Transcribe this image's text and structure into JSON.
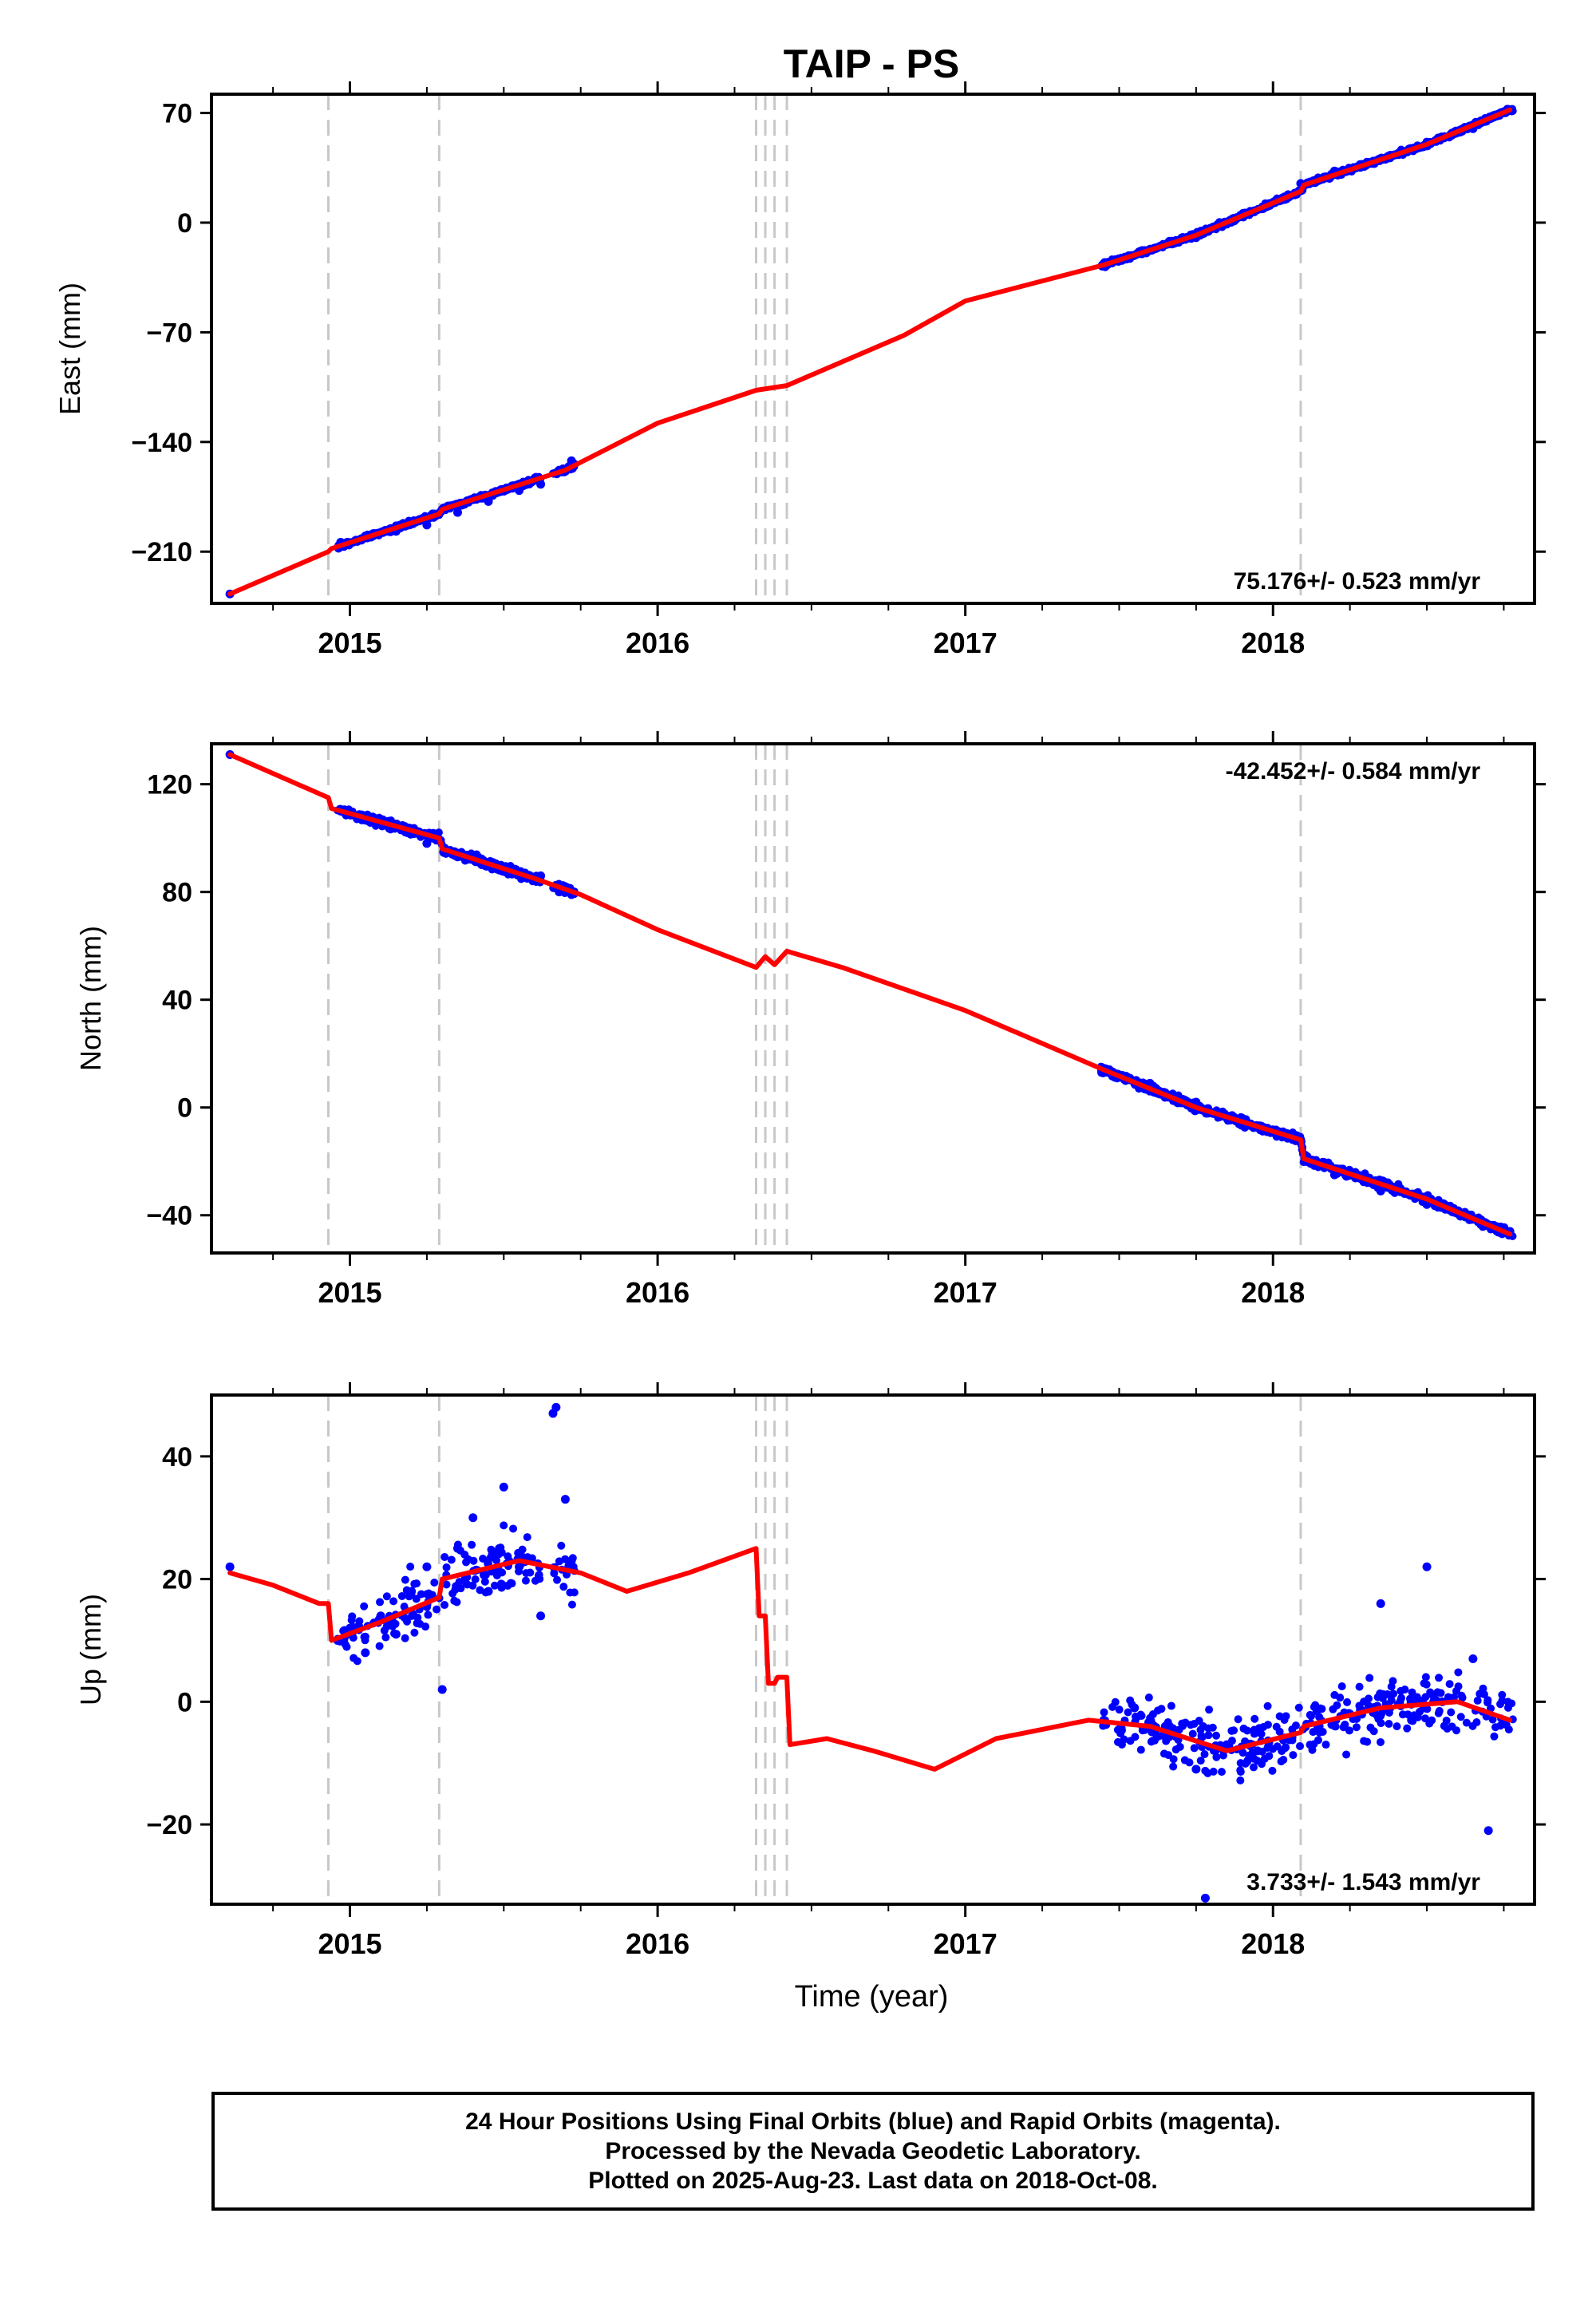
{
  "title": "TAIP - PS",
  "xlabel": "Time (year)",
  "x_ticks": [
    "2015",
    "2016",
    "2017",
    "2018"
  ],
  "colors": {
    "data": "#0000ff",
    "model": "#ff0000",
    "steps": "#c8c8c8",
    "frame": "#000000"
  },
  "footer": {
    "line1": "24 Hour Positions Using Final Orbits (blue) and Rapid Orbits (magenta).",
    "line2": "Processed by the Nevada Geodetic Laboratory.",
    "line3": "Plotted on 2025-Aug-23. Last data on 2018-Oct-08."
  },
  "chart_data": [
    {
      "type": "scatter",
      "ylabel": "East (mm)",
      "xlim": [
        2014.55,
        2018.85
      ],
      "ylim": [
        -243,
        82
      ],
      "y_ticks": [
        70,
        0,
        -70,
        -140,
        -210
      ],
      "rate_label": "75.176+/- 0.523 mm/yr",
      "rate_position": "bottom-right",
      "step_epochs": [
        2014.93,
        2015.29,
        2016.32,
        2016.35,
        2016.38,
        2016.42,
        2018.09
      ],
      "series": [
        {
          "role": "data",
          "x": [
            2014.61,
            2014.97,
            2015.05,
            2015.15,
            2015.25,
            2015.35,
            2015.45,
            2015.55,
            2015.62,
            2015.68,
            2015.72,
            2017.45,
            2017.6,
            2017.75,
            2017.9,
            2018.0,
            2018.09,
            2018.2,
            2018.35,
            2018.5,
            2018.65,
            2018.77
          ],
          "y": [
            -237,
            -204,
            -200,
            -197,
            -193,
            -185,
            -178,
            -171,
            -167,
            -158,
            -152,
            -27,
            -17,
            -8,
            5,
            13,
            25,
            33,
            41,
            49,
            60,
            72
          ]
        },
        {
          "role": "model",
          "x": [
            2014.61,
            2014.93,
            2014.94,
            2015.29,
            2015.3,
            2015.7,
            2016.0,
            2016.32,
            2016.42,
            2016.8,
            2017.0,
            2017.45,
            2017.75,
            2018.09,
            2018.1,
            2018.5,
            2018.77
          ],
          "y": [
            -237,
            -210,
            -208,
            -186,
            -183,
            -158,
            -128,
            -107,
            -104,
            -72,
            -50,
            -27,
            -8,
            20,
            24,
            50,
            72
          ]
        }
      ]
    },
    {
      "type": "scatter",
      "ylabel": "North (mm)",
      "xlim": [
        2014.55,
        2018.85
      ],
      "ylim": [
        -54,
        135
      ],
      "y_ticks": [
        120,
        80,
        40,
        0,
        -40
      ],
      "rate_label": "-42.452+/- 0.584 mm/yr",
      "rate_position": "top-right",
      "step_epochs": [
        2014.93,
        2015.29,
        2016.32,
        2016.35,
        2016.38,
        2016.42,
        2018.09
      ],
      "series": [
        {
          "role": "data",
          "x": [
            2014.61,
            2014.97,
            2015.05,
            2015.15,
            2015.25,
            2015.35,
            2015.45,
            2015.55,
            2015.62,
            2015.68,
            2015.72,
            2017.45,
            2017.6,
            2017.75,
            2017.9,
            2018.0,
            2018.09,
            2018.2,
            2018.35,
            2018.5,
            2018.65,
            2018.77
          ],
          "y": [
            131,
            110,
            107,
            104,
            98,
            93,
            90,
            87,
            86,
            80,
            79,
            14,
            9,
            2,
            -4,
            -9,
            -12,
            -25,
            -31,
            -36,
            -41,
            -46
          ]
        },
        {
          "role": "model",
          "x": [
            2014.61,
            2014.93,
            2014.94,
            2015.29,
            2015.3,
            2015.6,
            2015.75,
            2016.0,
            2016.32,
            2016.35,
            2016.38,
            2016.42,
            2016.6,
            2017.0,
            2017.45,
            2017.75,
            2018.09,
            2018.1,
            2018.5,
            2018.77
          ],
          "y": [
            131,
            115,
            111,
            100,
            96,
            85,
            79,
            66,
            52,
            56,
            53,
            58,
            52,
            36,
            14,
            0,
            -12,
            -19,
            -34,
            -47
          ]
        }
      ]
    },
    {
      "type": "scatter",
      "ylabel": "Up (mm)",
      "xlim": [
        2014.55,
        2018.85
      ],
      "ylim": [
        -33,
        50
      ],
      "y_ticks": [
        40,
        20,
        0,
        -20
      ],
      "rate_label": "3.733+/- 1.543 mm/yr",
      "rate_position": "bottom-right",
      "step_epochs": [
        2014.93,
        2015.29,
        2016.32,
        2016.35,
        2016.38,
        2016.42,
        2018.09
      ],
      "series": [
        {
          "role": "data",
          "x": [
            2014.61,
            2014.96,
            2015.0,
            2015.05,
            2015.1,
            2015.15,
            2015.2,
            2015.25,
            2015.3,
            2015.35,
            2015.4,
            2015.45,
            2015.5,
            2015.55,
            2015.62,
            2015.66,
            2015.67,
            2015.7,
            2015.72,
            2017.45,
            2017.55,
            2017.65,
            2017.75,
            2017.78,
            2017.85,
            2017.95,
            2018.05,
            2018.15,
            2018.25,
            2018.35,
            2018.45,
            2018.5,
            2018.55,
            2018.65,
            2018.7,
            2018.75
          ],
          "y": [
            22,
            10,
            12,
            8,
            14,
            11,
            18,
            22,
            2,
            25,
            30,
            18,
            35,
            22,
            14,
            47,
            48,
            33,
            23,
            -3,
            -1,
            -4,
            -11,
            -32,
            -7,
            -8,
            -6,
            -4,
            -2,
            16,
            -3,
            22,
            0,
            7,
            -21,
            -3
          ]
        },
        {
          "role": "model",
          "x": [
            2014.61,
            2014.75,
            2014.9,
            2014.93,
            2014.94,
            2015.1,
            2015.29,
            2015.3,
            2015.55,
            2015.75,
            2015.9,
            2016.1,
            2016.32,
            2016.33,
            2016.35,
            2016.36,
            2016.38,
            2016.39,
            2016.42,
            2016.43,
            2016.55,
            2016.7,
            2016.9,
            2017.1,
            2017.4,
            2017.6,
            2017.85,
            2018.09,
            2018.1,
            2018.35,
            2018.6,
            2018.77
          ],
          "y": [
            21,
            19,
            16,
            16,
            10,
            13,
            17,
            20,
            23,
            21,
            18,
            21,
            25,
            14,
            14,
            3,
            3,
            4,
            4,
            -7,
            -6,
            -8,
            -11,
            -6,
            -3,
            -4,
            -8,
            -5,
            -4,
            -1,
            0,
            -3
          ]
        }
      ]
    }
  ]
}
